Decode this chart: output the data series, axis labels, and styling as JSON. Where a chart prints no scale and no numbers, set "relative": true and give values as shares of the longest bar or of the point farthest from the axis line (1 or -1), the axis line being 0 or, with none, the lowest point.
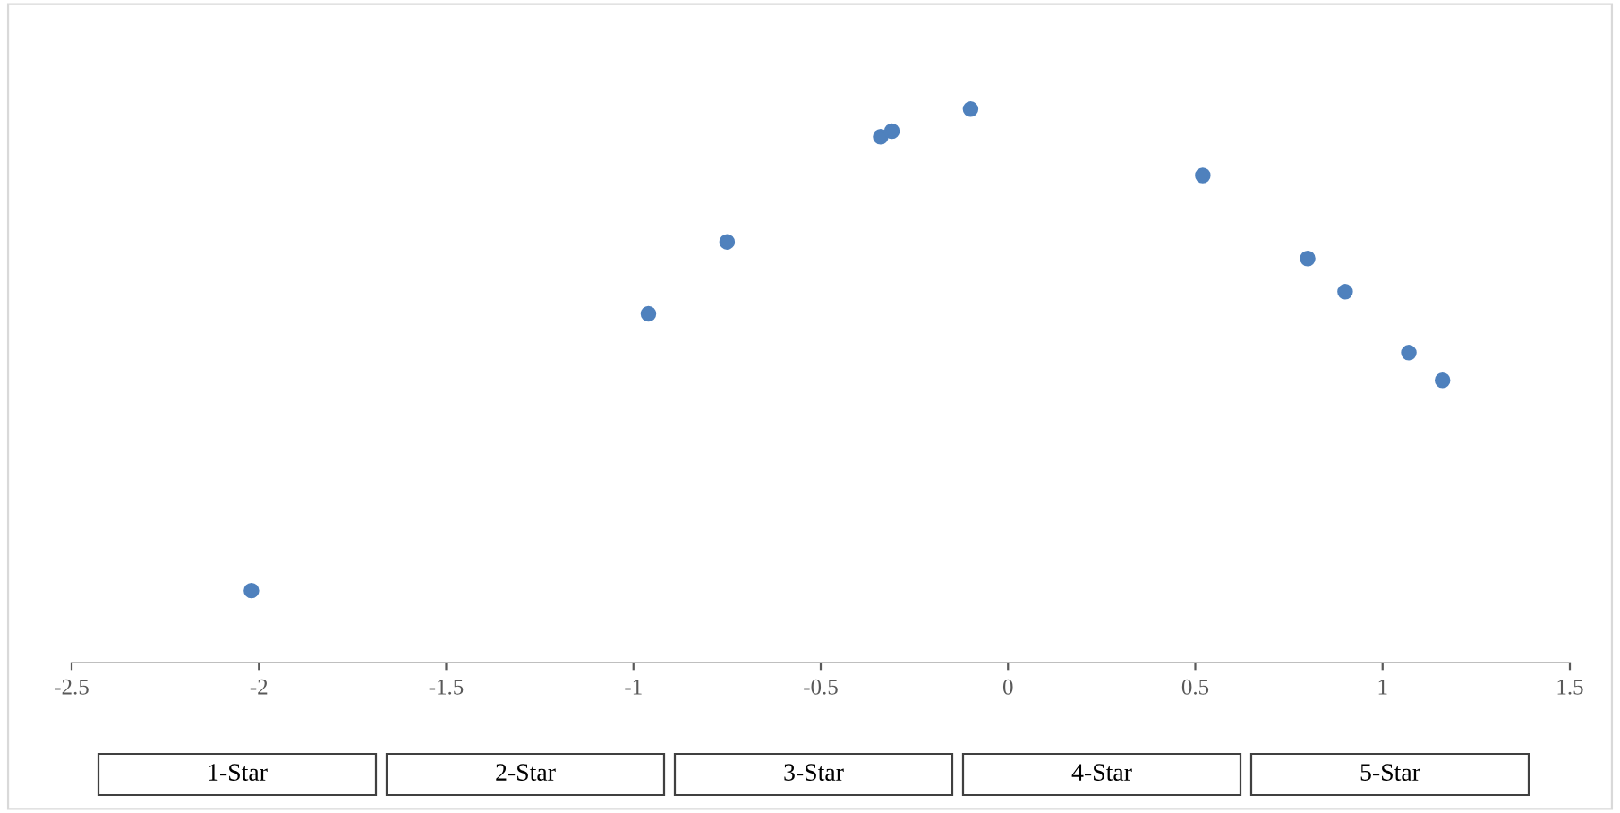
{
  "chart_data": {
    "type": "scatter",
    "relative": true,
    "x": [
      -2.02,
      -0.96,
      -0.75,
      -0.34,
      -0.31,
      -0.1,
      0.52,
      0.8,
      0.9,
      1.07,
      1.16
    ],
    "values": [
      0.13,
      0.63,
      0.76,
      0.95,
      0.96,
      1.0,
      0.88,
      0.73,
      0.67,
      0.56,
      0.51
    ],
    "color": "#4f81bd",
    "marker": "circle",
    "xlim": [
      -2.5,
      1.5
    ],
    "xticks": [
      -2.5,
      -2,
      -1.5,
      -1,
      -0.5,
      0,
      0.5,
      1,
      1.5
    ],
    "tick_labels": "x",
    "grid": false,
    "legend": false,
    "annotations": [
      "1-Star",
      "2-Star",
      "3-Star",
      "4-Star",
      "5-Star"
    ]
  }
}
